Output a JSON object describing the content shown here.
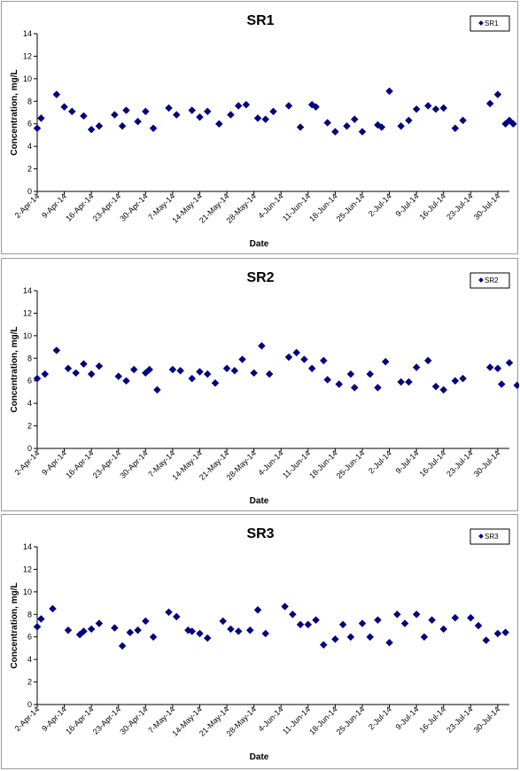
{
  "colors": {
    "marker": "#000080",
    "axis": "#000000"
  },
  "x_tick_labels": [
    "2-Apr-14",
    "9-Apr-14",
    "16-Apr-14",
    "23-Apr-14",
    "30-Apr-14",
    "7-May-14",
    "14-May-14",
    "21-May-14",
    "28-May-14",
    "4-Jun-14",
    "11-Jun-14",
    "18-Jun-14",
    "25-Jun-14",
    "2-Jul-14",
    "9-Jul-14",
    "16-Jul-14",
    "23-Jul-14",
    "30-Jul-14"
  ],
  "y_tick_labels": [
    "0",
    "2",
    "4",
    "6",
    "8",
    "10",
    "12",
    "14"
  ],
  "chart_data": [
    {
      "type": "scatter",
      "title": "SR1",
      "xlabel": "Date",
      "ylabel": "Concentration, mg/L",
      "xlim": [
        "2-Apr-14",
        "2-Aug-14"
      ],
      "ylim": [
        0,
        14
      ],
      "legend_position": "top-right",
      "series": [
        {
          "name": "SR1",
          "points": [
            [
              "2-Apr-14",
              5.6
            ],
            [
              "3-Apr-14",
              6.5
            ],
            [
              "7-Apr-14",
              8.6
            ],
            [
              "9-Apr-14",
              7.5
            ],
            [
              "11-Apr-14",
              7.1
            ],
            [
              "14-Apr-14",
              6.7
            ],
            [
              "16-Apr-14",
              5.5
            ],
            [
              "18-Apr-14",
              5.8
            ],
            [
              "22-Apr-14",
              6.8
            ],
            [
              "24-Apr-14",
              5.8
            ],
            [
              "25-Apr-14",
              7.2
            ],
            [
              "28-Apr-14",
              6.2
            ],
            [
              "30-Apr-14",
              7.1
            ],
            [
              "2-May-14",
              5.6
            ],
            [
              "6-May-14",
              7.4
            ],
            [
              "8-May-14",
              6.8
            ],
            [
              "12-May-14",
              7.2
            ],
            [
              "14-May-14",
              6.6
            ],
            [
              "16-May-14",
              7.1
            ],
            [
              "19-May-14",
              6.0
            ],
            [
              "22-May-14",
              6.8
            ],
            [
              "24-May-14",
              7.6
            ],
            [
              "26-May-14",
              7.7
            ],
            [
              "29-May-14",
              6.5
            ],
            [
              "31-May-14",
              6.4
            ],
            [
              "2-Jun-14",
              7.1
            ],
            [
              "6-Jun-14",
              7.6
            ],
            [
              "9-Jun-14",
              5.7
            ],
            [
              "12-Jun-14",
              7.7
            ],
            [
              "13-Jun-14",
              7.5
            ],
            [
              "16-Jun-14",
              6.1
            ],
            [
              "18-Jun-14",
              5.3
            ],
            [
              "21-Jun-14",
              5.8
            ],
            [
              "23-Jun-14",
              6.4
            ],
            [
              "25-Jun-14",
              5.3
            ],
            [
              "29-Jun-14",
              5.9
            ],
            [
              "30-Jun-14",
              5.7
            ],
            [
              "2-Jul-14",
              8.9
            ],
            [
              "5-Jul-14",
              5.8
            ],
            [
              "7-Jul-14",
              6.3
            ],
            [
              "9-Jul-14",
              7.3
            ],
            [
              "12-Jul-14",
              7.6
            ],
            [
              "14-Jul-14",
              7.3
            ],
            [
              "16-Jul-14",
              7.4
            ],
            [
              "19-Jul-14",
              5.6
            ],
            [
              "21-Jul-14",
              6.3
            ],
            [
              "28-Jul-14",
              7.8
            ],
            [
              "30-Jul-14",
              8.6
            ],
            [
              "1-Aug-14",
              6.0
            ],
            [
              "2-Aug-14",
              6.3
            ],
            [
              "3-Aug-14",
              6.0
            ]
          ]
        }
      ]
    },
    {
      "type": "scatter",
      "title": "SR2",
      "xlabel": "Date",
      "ylabel": "Concentration, mg/L",
      "xlim": [
        "2-Apr-14",
        "2-Aug-14"
      ],
      "ylim": [
        0,
        14
      ],
      "legend_position": "top-right",
      "series": [
        {
          "name": "SR2",
          "points": [
            [
              "2-Apr-14",
              6.2
            ],
            [
              "4-Apr-14",
              6.6
            ],
            [
              "7-Apr-14",
              8.7
            ],
            [
              "10-Apr-14",
              7.1
            ],
            [
              "12-Apr-14",
              6.7
            ],
            [
              "14-Apr-14",
              7.5
            ],
            [
              "16-Apr-14",
              6.6
            ],
            [
              "18-Apr-14",
              7.3
            ],
            [
              "23-Apr-14",
              6.4
            ],
            [
              "25-Apr-14",
              6.0
            ],
            [
              "27-Apr-14",
              7.0
            ],
            [
              "30-Apr-14",
              6.7
            ],
            [
              "1-May-14",
              7.0
            ],
            [
              "3-May-14",
              5.2
            ],
            [
              "7-May-14",
              7.0
            ],
            [
              "9-May-14",
              6.9
            ],
            [
              "12-May-14",
              6.2
            ],
            [
              "14-May-14",
              6.8
            ],
            [
              "16-May-14",
              6.6
            ],
            [
              "18-May-14",
              5.8
            ],
            [
              "21-May-14",
              7.1
            ],
            [
              "23-May-14",
              6.9
            ],
            [
              "25-May-14",
              7.9
            ],
            [
              "28-May-14",
              6.7
            ],
            [
              "30-May-14",
              9.1
            ],
            [
              "1-Jun-14",
              6.6
            ],
            [
              "6-Jun-14",
              8.1
            ],
            [
              "8-Jun-14",
              8.5
            ],
            [
              "10-Jun-14",
              7.9
            ],
            [
              "12-Jun-14",
              7.1
            ],
            [
              "15-Jun-14",
              7.8
            ],
            [
              "16-Jun-14",
              6.1
            ],
            [
              "19-Jun-14",
              5.7
            ],
            [
              "22-Jun-14",
              6.6
            ],
            [
              "23-Jun-14",
              5.4
            ],
            [
              "27-Jun-14",
              6.6
            ],
            [
              "29-Jun-14",
              5.4
            ],
            [
              "1-Jul-14",
              7.7
            ],
            [
              "5-Jul-14",
              5.9
            ],
            [
              "7-Jul-14",
              5.9
            ],
            [
              "9-Jul-14",
              7.2
            ],
            [
              "12-Jul-14",
              7.8
            ],
            [
              "14-Jul-14",
              5.5
            ],
            [
              "16-Jul-14",
              5.2
            ],
            [
              "19-Jul-14",
              6.0
            ],
            [
              "21-Jul-14",
              6.2
            ],
            [
              "28-Jul-14",
              7.2
            ],
            [
              "30-Jul-14",
              7.1
            ],
            [
              "31-Jul-14",
              5.7
            ],
            [
              "2-Aug-14",
              7.6
            ],
            [
              "4-Aug-14",
              5.6
            ]
          ]
        }
      ]
    },
    {
      "type": "scatter",
      "title": "SR3",
      "xlabel": "Date",
      "ylabel": "Concentration, mg/L",
      "xlim": [
        "2-Apr-14",
        "2-Aug-14"
      ],
      "ylim": [
        0,
        14
      ],
      "legend_position": "top-right",
      "series": [
        {
          "name": "SR3",
          "points": [
            [
              "2-Apr-14",
              6.9
            ],
            [
              "3-Apr-14",
              7.6
            ],
            [
              "6-Apr-14",
              8.5
            ],
            [
              "10-Apr-14",
              6.6
            ],
            [
              "13-Apr-14",
              6.2
            ],
            [
              "14-Apr-14",
              6.5
            ],
            [
              "16-Apr-14",
              6.7
            ],
            [
              "18-Apr-14",
              7.2
            ],
            [
              "22-Apr-14",
              6.8
            ],
            [
              "24-Apr-14",
              5.2
            ],
            [
              "26-Apr-14",
              6.4
            ],
            [
              "28-Apr-14",
              6.6
            ],
            [
              "30-Apr-14",
              7.4
            ],
            [
              "2-May-14",
              6.0
            ],
            [
              "6-May-14",
              8.2
            ],
            [
              "8-May-14",
              7.8
            ],
            [
              "11-May-14",
              6.6
            ],
            [
              "12-May-14",
              6.5
            ],
            [
              "14-May-14",
              6.3
            ],
            [
              "16-May-14",
              5.9
            ],
            [
              "20-May-14",
              7.4
            ],
            [
              "22-May-14",
              6.7
            ],
            [
              "24-May-14",
              6.5
            ],
            [
              "27-May-14",
              6.6
            ],
            [
              "29-May-14",
              8.4
            ],
            [
              "31-May-14",
              6.3
            ],
            [
              "5-Jun-14",
              8.7
            ],
            [
              "7-Jun-14",
              8.0
            ],
            [
              "9-Jun-14",
              7.1
            ],
            [
              "11-Jun-14",
              7.1
            ],
            [
              "13-Jun-14",
              7.5
            ],
            [
              "15-Jun-14",
              5.3
            ],
            [
              "18-Jun-14",
              5.8
            ],
            [
              "20-Jun-14",
              7.1
            ],
            [
              "22-Jun-14",
              6.0
            ],
            [
              "25-Jun-14",
              7.2
            ],
            [
              "27-Jun-14",
              6.0
            ],
            [
              "29-Jun-14",
              7.5
            ],
            [
              "2-Jul-14",
              5.5
            ],
            [
              "4-Jul-14",
              8.0
            ],
            [
              "6-Jul-14",
              7.2
            ],
            [
              "9-Jul-14",
              8.0
            ],
            [
              "11-Jul-14",
              6.0
            ],
            [
              "13-Jul-14",
              7.5
            ],
            [
              "16-Jul-14",
              6.7
            ],
            [
              "19-Jul-14",
              7.7
            ],
            [
              "23-Jul-14",
              7.7
            ],
            [
              "25-Jul-14",
              7.0
            ],
            [
              "27-Jul-14",
              5.7
            ],
            [
              "30-Jul-14",
              6.3
            ],
            [
              "1-Aug-14",
              6.4
            ]
          ]
        }
      ]
    }
  ]
}
